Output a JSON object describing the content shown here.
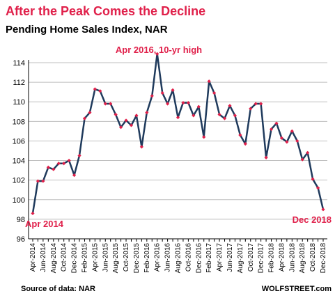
{
  "chart_data": {
    "type": "line",
    "title": "After the Peak Comes the Decline",
    "subtitle": "Pending Home Sales Index, NAR",
    "ylim": [
      96,
      114
    ],
    "yticks": [
      96,
      98,
      100,
      102,
      104,
      106,
      108,
      110,
      112,
      114
    ],
    "grid": "horizontal",
    "x": [
      "Apr-2014",
      "May-2014",
      "Jun-2014",
      "Jul-2014",
      "Aug-2014",
      "Sep-2014",
      "Oct-2014",
      "Nov-2014",
      "Dec-2014",
      "Jan-2015",
      "Feb-2015",
      "Mar-2015",
      "Apr-2015",
      "May-2015",
      "Jun-2015",
      "Jul-2015",
      "Aug-2015",
      "Sep-2015",
      "Oct-2015",
      "Nov-2015",
      "Dec-2015",
      "Jan-2016",
      "Feb-2016",
      "Mar-2016",
      "Apr-2016",
      "May-2016",
      "Jun-2016",
      "Jul-2016",
      "Aug-2016",
      "Sep-2016",
      "Oct-2016",
      "Nov-2016",
      "Dec-2016",
      "Jan-2017",
      "Feb-2017",
      "Mar-2017",
      "Apr-2017",
      "May-2017",
      "Jun-2017",
      "Jul-2017",
      "Aug-2017",
      "Sep-2017",
      "Oct-2017",
      "Nov-2017",
      "Dec-2017",
      "Jan-2018",
      "Feb-2018",
      "Mar-2018",
      "Apr-2018",
      "May-2018",
      "Jun-2018",
      "Jul-2018",
      "Aug-2018",
      "Sep-2018",
      "Oct-2018",
      "Nov-2018",
      "Dec-2018"
    ],
    "xticks": [
      "Apr-2014",
      "Jun-2014",
      "Aug-2014",
      "Oct-2014",
      "Dec-2014",
      "Feb-2015",
      "Apr-2015",
      "Jun-2015",
      "Aug-2015",
      "Oct-2015",
      "Dec-2015",
      "Feb-2016",
      "Apr-2016",
      "Jun-2016",
      "Aug-2016",
      "Oct-2016",
      "Dec-2016",
      "Feb-2017",
      "Apr-2017",
      "Jun-2017",
      "Aug-2017",
      "Oct-2017",
      "Dec-2017",
      "Feb-2018",
      "Apr-2018",
      "Jun-2018",
      "Aug-2018",
      "Oct-2018",
      "Dec-2018"
    ],
    "series": [
      {
        "values": [
          98.6,
          101.9,
          101.9,
          103.3,
          103.1,
          103.7,
          103.7,
          104.0,
          102.5,
          104.5,
          108.3,
          108.9,
          111.3,
          111.1,
          109.8,
          109.8,
          108.7,
          107.4,
          108.1,
          107.6,
          108.6,
          105.4,
          108.9,
          110.6,
          114.9,
          110.9,
          109.8,
          111.2,
          108.4,
          109.9,
          109.9,
          108.6,
          109.5,
          106.4,
          112.1,
          110.9,
          108.7,
          108.3,
          109.6,
          108.6,
          106.6,
          105.7,
          109.3,
          109.8,
          109.8,
          104.3,
          107.2,
          107.8,
          106.3,
          105.9,
          107.0,
          106.0,
          104.1,
          104.8,
          102.1,
          101.2,
          99.0
        ]
      }
    ],
    "line_color": "#1f3a5c",
    "marker_color": "#e0204a",
    "annotations": [
      {
        "text": "Apr 2016, 10-yr high",
        "color": "#e0204a"
      },
      {
        "text": "Apr 2014",
        "color": "#e0204a"
      },
      {
        "text": "Dec 2018",
        "color": "#e0204a"
      }
    ]
  },
  "colors": {
    "title": "#e0204a",
    "subtitle": "#000000",
    "axis": "#000000",
    "grid": "#bfbfbf"
  },
  "footer": {
    "source": "Source of data: NAR",
    "brand": "WOLFSTREET.com"
  }
}
